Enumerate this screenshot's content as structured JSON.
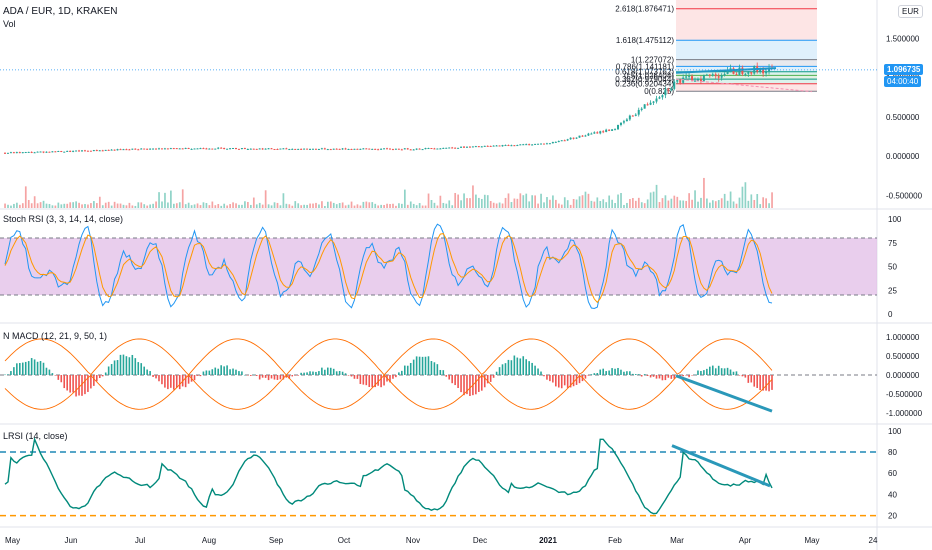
{
  "header": {
    "symbol_line": "ADA / EUR, 1D, KRAKEN",
    "vol_label": "Vol",
    "currency_button": "EUR"
  },
  "price_axis": {
    "ticks": [
      "1.500000",
      "1.000000",
      "0.500000",
      "0.000000",
      "-0.500000"
    ],
    "last_price": "1.096735",
    "countdown": "04:00:40"
  },
  "fib_levels": [
    {
      "label": "2.618(1.876471)",
      "color": "#f23645"
    },
    {
      "label": "1.618(1.475112)",
      "color": "#2196f3"
    },
    {
      "label": "1(1.227072)",
      "color": "#787b86"
    },
    {
      "label": "0.786(1.141181)",
      "color": "#2196f3"
    },
    {
      "label": "0.618(1.073762)",
      "color": "#089981"
    },
    {
      "label": "0.5(1.026404)",
      "color": "#4caf50"
    },
    {
      "label": "0.382(0.979044)",
      "color": "#089981"
    },
    {
      "label": "0.236(0.920434)",
      "color": "#f23645"
    },
    {
      "label": "0(0.825)",
      "color": "#787b86"
    }
  ],
  "panes": {
    "stoch": {
      "title": "Stoch RSI (3, 3, 14, 14, close)",
      "ticks": [
        "100",
        "75",
        "50",
        "25",
        "0"
      ]
    },
    "macd": {
      "title": "N MACD (12, 21, 9, 50, 1)",
      "ticks": [
        "1.000000",
        "0.500000",
        "0.000000",
        "-0.500000",
        "-1.000000"
      ]
    },
    "lrsi": {
      "title": "LRSI (14, close)",
      "ticks": [
        "100",
        "80",
        "60",
        "40",
        "20"
      ]
    }
  },
  "time_axis": [
    "May",
    "Jun",
    "Jul",
    "Aug",
    "Sep",
    "Oct",
    "Nov",
    "Dec",
    "2021",
    "Feb",
    "Mar",
    "Apr",
    "May",
    "24"
  ],
  "chart_data": {
    "type": "line",
    "x": [
      "May",
      "Jun",
      "Jul",
      "Aug",
      "Sep",
      "Oct",
      "Nov",
      "Dec",
      "2021",
      "Feb",
      "Mar",
      "Apr"
    ],
    "series": [
      {
        "values": [
          0.04,
          0.06,
          0.09,
          0.1,
          0.09,
          0.09,
          0.09,
          0.12,
          0.16,
          0.35,
          0.95,
          1.1
        ]
      }
    ],
    "ylim": [
      -0.6,
      2.0
    ],
    "grid": false,
    "legend": "none"
  }
}
